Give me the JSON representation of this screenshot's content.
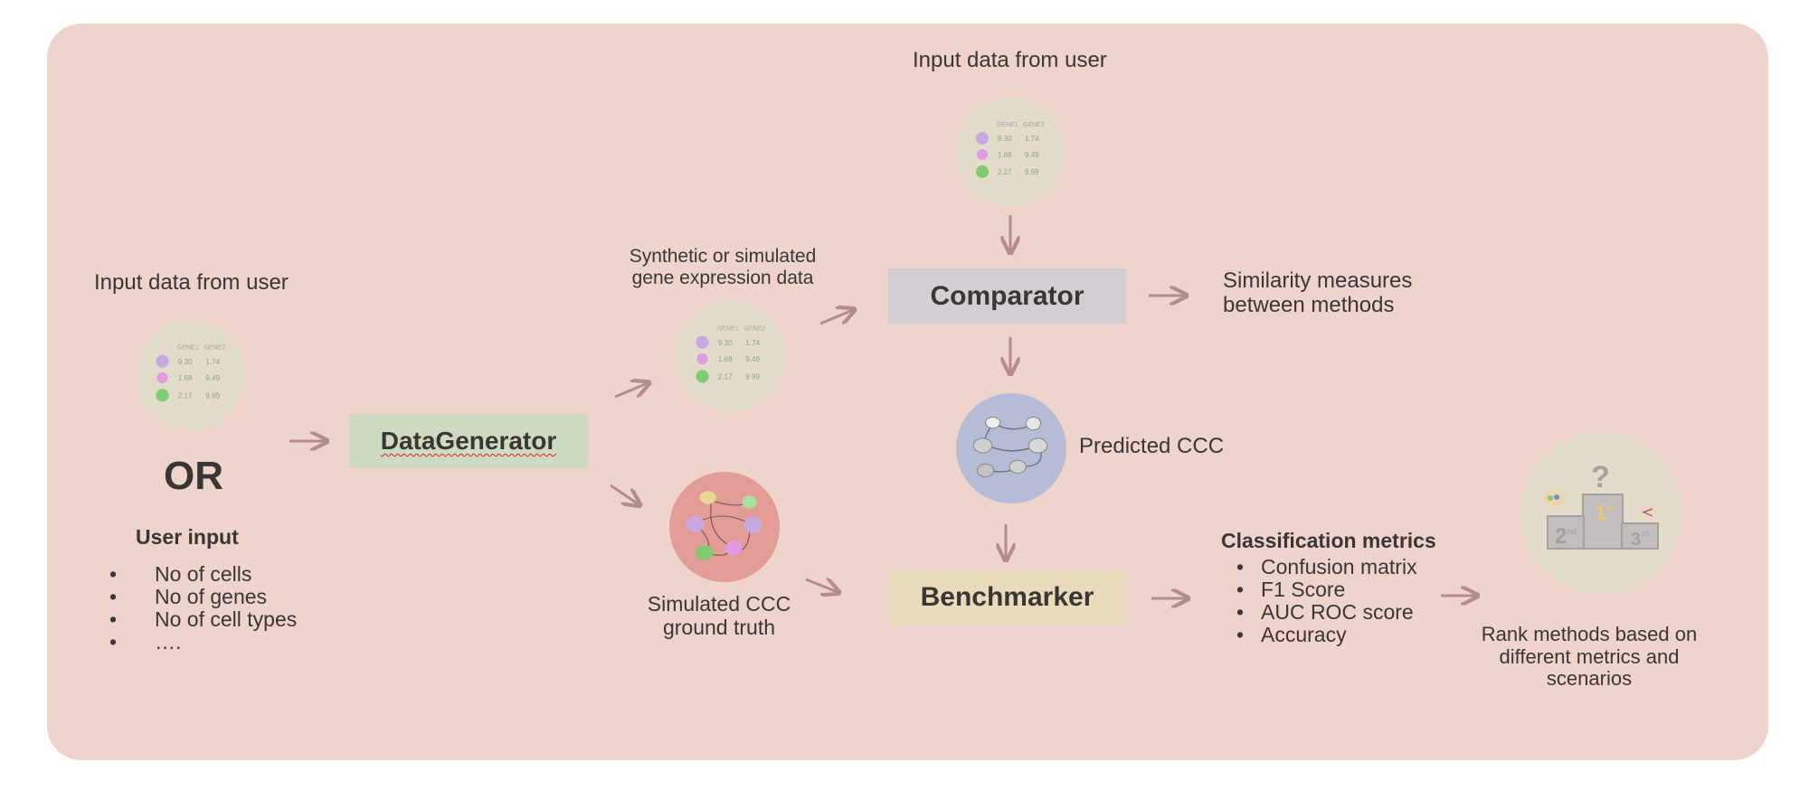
{
  "input_left": {
    "title": "Input data from user",
    "or": "OR",
    "user_input_title": "User input",
    "items": [
      "No of cells",
      "No of genes",
      "No of cell types",
      "…."
    ]
  },
  "input_top": {
    "title": "Input data from user"
  },
  "data_table": {
    "headers": [
      "GENE1",
      "GENE2"
    ],
    "rows": [
      [
        "9.30",
        "1.74"
      ],
      [
        "1.68",
        "9.49"
      ],
      [
        "2.17",
        "9.99"
      ]
    ]
  },
  "data_generator": {
    "label": "DataGenerator"
  },
  "synthetic": {
    "line1": "Synthetic or simulated",
    "line2": "gene expression data"
  },
  "simulated_ccc": {
    "line1": "Simulated CCC",
    "line2": "ground truth"
  },
  "comparator": {
    "label": "Comparator"
  },
  "similarity": {
    "line1": "Similarity measures",
    "line2": "between methods"
  },
  "predicted_ccc": {
    "label": "Predicted CCC"
  },
  "benchmarker": {
    "label": "Benchmarker"
  },
  "classification": {
    "title": "Classification metrics",
    "items": [
      "Confusion matrix",
      "F1 Score",
      "AUC ROC score",
      "Accuracy"
    ]
  },
  "rank": {
    "line1": "Rank methods based on",
    "line2": "different metrics and",
    "line3": "scenarios"
  },
  "podium": {
    "first": "1",
    "first_sup": "st",
    "second": "2",
    "second_sup": "nd",
    "third": "3",
    "third_sup": "rd",
    "question": "?"
  },
  "colors": {
    "panel": "#efd3cd",
    "data_generator_box": "#cddbc1",
    "comparator_box": "#d4cdd3",
    "benchmarker_box": "#eadbbd",
    "data_circle": "#e2dccb",
    "ground_truth_circle": "#e49d96",
    "predicted_circle": "#b6bcd6",
    "arrow": "#b38d8d"
  }
}
